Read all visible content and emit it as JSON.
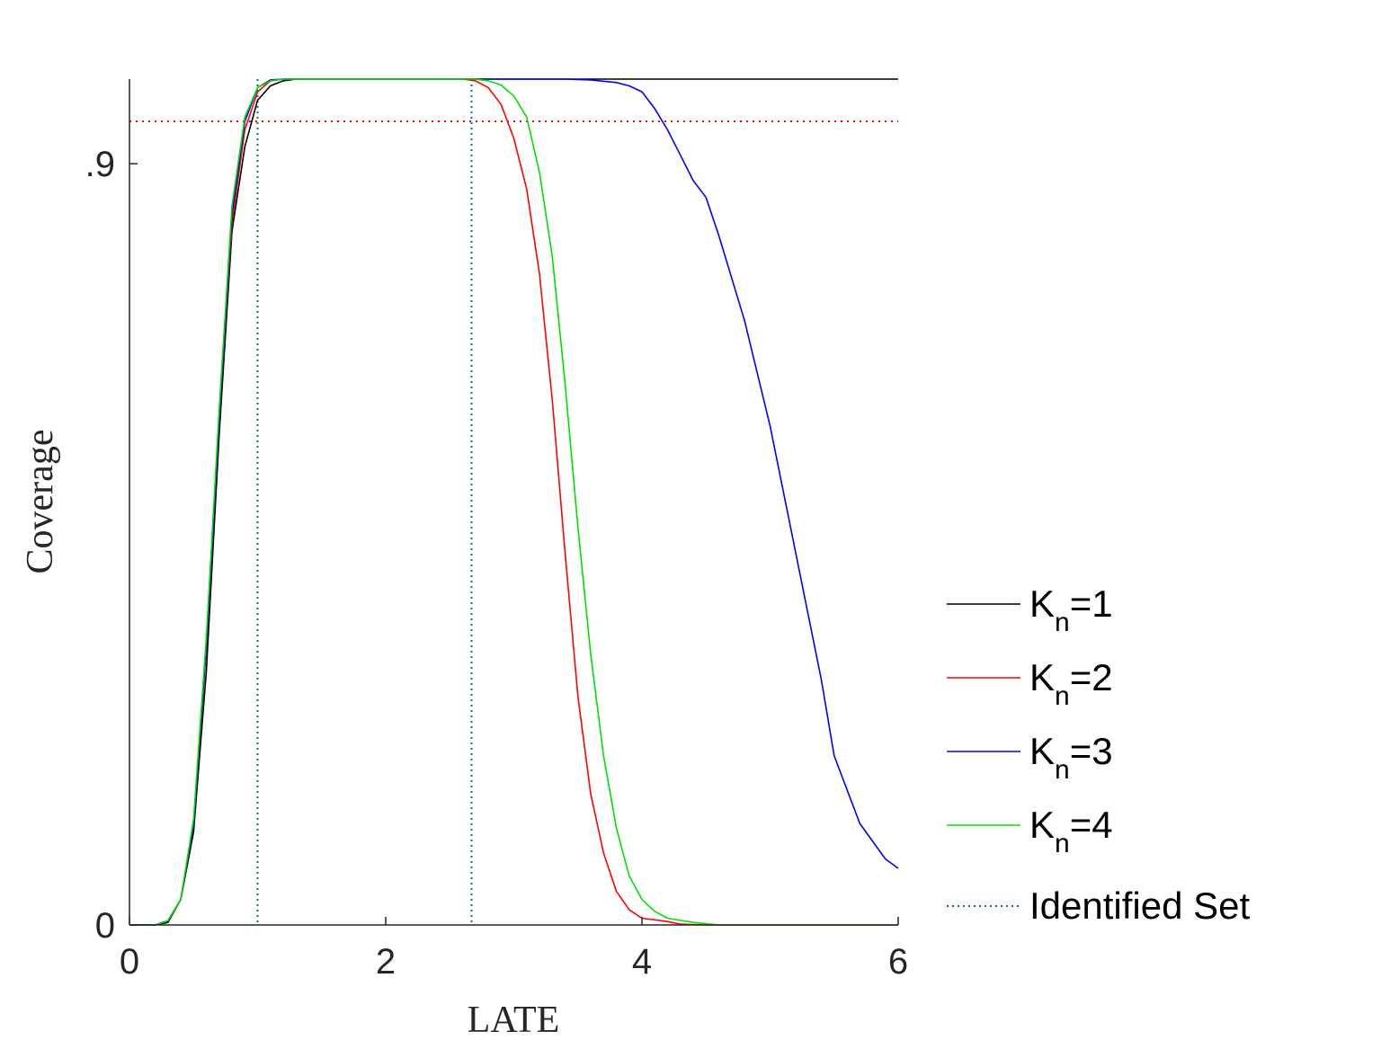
{
  "chart_data": {
    "type": "line",
    "title": "",
    "xlabel": "LATE",
    "ylabel": "Coverage",
    "xlim": [
      0,
      6
    ],
    "ylim": [
      0,
      1
    ],
    "xticks": [
      0,
      2,
      4,
      6
    ],
    "xtick_labels": [
      "0",
      "2",
      "4",
      "6"
    ],
    "yticks": [
      0,
      0.9
    ],
    "ytick_labels": [
      "0",
      ".9"
    ],
    "grid": false,
    "legend_position": "right",
    "reference_lines": {
      "nominal_level": {
        "y": 0.95,
        "color": "#ff0000",
        "style": "dotted"
      },
      "identified_set": {
        "x": [
          1.0,
          2.67
        ],
        "color": "#0b6e7a",
        "style": "dotted"
      }
    },
    "series": [
      {
        "name": "K_n=1",
        "label_main": "K",
        "label_sub": "n",
        "label_tail": "=1",
        "color": "#000000",
        "style": "solid",
        "x": [
          0,
          0.2,
          0.3,
          0.4,
          0.5,
          0.6,
          0.7,
          0.8,
          0.9,
          1.0,
          1.1,
          1.2,
          1.3,
          2.0,
          3.0,
          4.0,
          5.0,
          6.0
        ],
        "y": [
          0,
          0,
          0.003,
          0.03,
          0.11,
          0.3,
          0.58,
          0.82,
          0.92,
          0.975,
          0.992,
          0.998,
          1.0,
          1.0,
          1.0,
          1.0,
          1.0,
          1.0
        ]
      },
      {
        "name": "K_n=2",
        "label_main": "K",
        "label_sub": "n",
        "label_tail": "=2",
        "color": "#ff0000",
        "style": "solid",
        "x": [
          0,
          0.2,
          0.3,
          0.4,
          0.5,
          0.6,
          0.7,
          0.8,
          0.9,
          1.0,
          1.1,
          1.2,
          2.0,
          2.6,
          2.7,
          2.8,
          2.9,
          3.0,
          3.1,
          3.2,
          3.3,
          3.4,
          3.5,
          3.6,
          3.7,
          3.8,
          3.9,
          4.0,
          4.2,
          4.3,
          4.5,
          6.0
        ],
        "y": [
          0,
          0,
          0.005,
          0.03,
          0.12,
          0.33,
          0.6,
          0.83,
          0.94,
          0.985,
          0.998,
          1.0,
          1.0,
          1.0,
          0.998,
          0.99,
          0.97,
          0.93,
          0.87,
          0.77,
          0.62,
          0.44,
          0.27,
          0.155,
          0.085,
          0.04,
          0.018,
          0.008,
          0.004,
          0.001,
          0.0,
          0.0
        ]
      },
      {
        "name": "K_n=3",
        "label_main": "K",
        "label_sub": "n",
        "label_tail": "=3",
        "color": "#0000ff",
        "style": "solid",
        "x": [
          0,
          0.2,
          0.3,
          0.4,
          0.5,
          0.6,
          0.7,
          0.8,
          0.9,
          1.0,
          1.1,
          1.2,
          2.0,
          3.0,
          3.4,
          3.6,
          3.8,
          3.9,
          4.0,
          4.1,
          4.2,
          4.3,
          4.4,
          4.5,
          4.6,
          4.8,
          5.0,
          5.2,
          5.4,
          5.5,
          5.7,
          5.9,
          6.0
        ],
        "y": [
          0,
          0,
          0.005,
          0.03,
          0.12,
          0.33,
          0.6,
          0.84,
          0.95,
          0.99,
          0.999,
          1.0,
          1.0,
          1.0,
          1.0,
          0.999,
          0.996,
          0.992,
          0.985,
          0.965,
          0.94,
          0.91,
          0.88,
          0.86,
          0.815,
          0.715,
          0.59,
          0.44,
          0.29,
          0.2,
          0.12,
          0.078,
          0.067
        ]
      },
      {
        "name": "K_n=4",
        "label_main": "K",
        "label_sub": "n",
        "label_tail": "=4",
        "color": "#00e000",
        "style": "solid",
        "x": [
          0,
          0.2,
          0.3,
          0.4,
          0.5,
          0.6,
          0.7,
          0.8,
          0.9,
          1.0,
          1.1,
          1.2,
          2.0,
          2.7,
          2.8,
          2.9,
          3.0,
          3.1,
          3.2,
          3.3,
          3.4,
          3.5,
          3.6,
          3.7,
          3.8,
          3.9,
          4.0,
          4.1,
          4.2,
          4.4,
          4.6,
          6.0
        ],
        "y": [
          0,
          0,
          0.005,
          0.03,
          0.125,
          0.34,
          0.61,
          0.85,
          0.955,
          0.99,
          0.998,
          1.0,
          1.0,
          1.0,
          0.998,
          0.993,
          0.98,
          0.955,
          0.89,
          0.79,
          0.64,
          0.47,
          0.32,
          0.2,
          0.115,
          0.058,
          0.03,
          0.016,
          0.008,
          0.003,
          0.0,
          0.0
        ]
      }
    ],
    "legend_extra": {
      "name": "Identified Set",
      "color": "#0b6e7a",
      "style": "dotted"
    }
  }
}
